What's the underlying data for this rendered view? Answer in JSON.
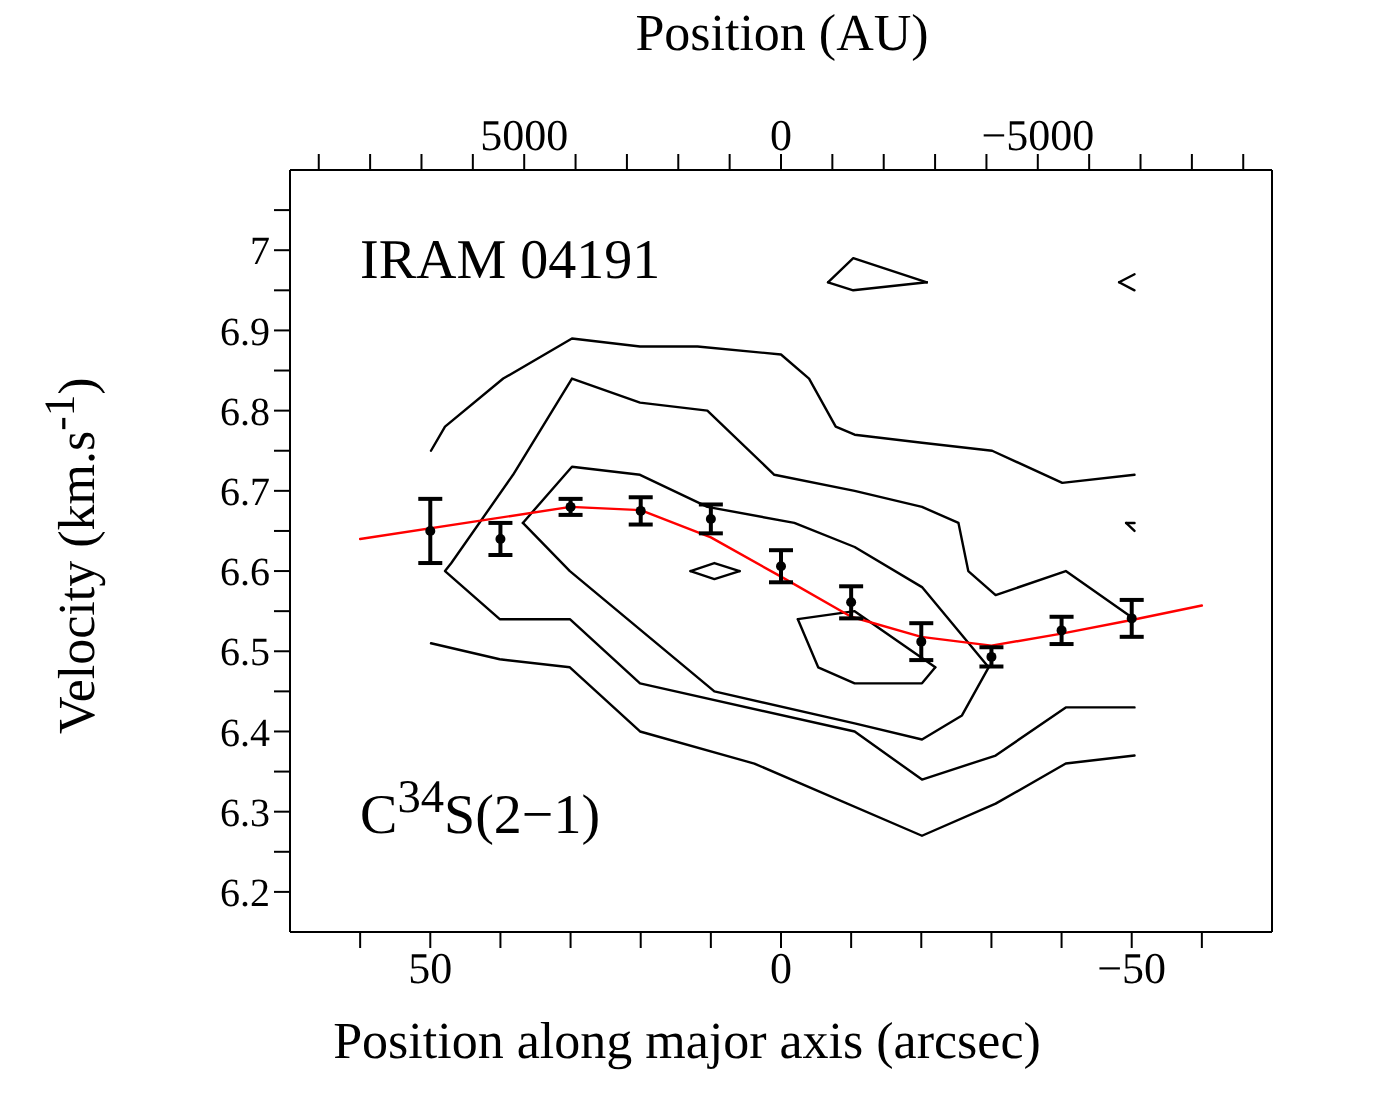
{
  "chart_data": {
    "type": "line",
    "xlabel": "Position along major axis (arcsec)",
    "ylabel": "Velocity (km.s$^{-1}$)",
    "x2label": "Position (AU)",
    "annotations": [
      "IRAM 04191",
      "C$^{34}$S(2−1)"
    ],
    "xlim": [
      70,
      -70
    ],
    "xticks": [
      {
        "value": 60,
        "label": null
      },
      50,
      {
        "value": 40,
        "label": null
      },
      {
        "value": 30,
        "label": null
      },
      {
        "value": 20,
        "label": null
      },
      {
        "value": 10,
        "label": null
      },
      0,
      {
        "value": -10,
        "label": null
      },
      {
        "value": -20,
        "label": null
      },
      {
        "value": -30,
        "label": null
      },
      {
        "value": -40,
        "label": null
      },
      {
        "value": -50,
        "label": "−50"
      },
      {
        "value": -60,
        "label": null
      }
    ],
    "x2lim": [
      9560,
      -9560
    ],
    "x2ticks": [
      {
        "value": 9000,
        "label": null
      },
      {
        "value": 8000,
        "label": null
      },
      {
        "value": 7000,
        "label": null
      },
      {
        "value": 6000,
        "label": null
      },
      5000,
      {
        "value": 4000,
        "label": null
      },
      {
        "value": 3000,
        "label": null
      },
      {
        "value": 2000,
        "label": null
      },
      {
        "value": 1000,
        "label": null
      },
      0,
      {
        "value": -1000,
        "label": null
      },
      {
        "value": -2000,
        "label": null
      },
      {
        "value": -3000,
        "label": null
      },
      {
        "value": -4000,
        "label": null
      },
      {
        "value": -5000,
        "label": "−5000"
      },
      {
        "value": -6000,
        "label": null
      },
      {
        "value": -7000,
        "label": null
      },
      {
        "value": -8000,
        "label": null
      },
      {
        "value": -9000,
        "label": null
      }
    ],
    "ylim": [
      6.15,
      7.1
    ],
    "yticks": [
      6.2,
      {
        "value": 6.25,
        "label": null
      },
      6.3,
      {
        "value": 6.35,
        "label": null
      },
      6.4,
      {
        "value": 6.45,
        "label": null
      },
      6.5,
      {
        "value": 6.55,
        "label": null
      },
      6.6,
      {
        "value": 6.65,
        "label": null
      },
      6.7,
      {
        "value": 6.75,
        "label": null
      },
      6.8,
      {
        "value": 6.85,
        "label": null
      },
      6.9,
      {
        "value": 6.95,
        "label": null
      },
      7,
      {
        "value": 7.05,
        "label": null
      }
    ],
    "series": [
      {
        "type": "line",
        "marker": "none",
        "color": "#000000",
        "x": [
          49.9,
          47.9,
          39.6,
          29.8,
          20.1,
          11.9,
          0,
          -4,
          -7.8,
          -10.5,
          -20.1,
          -30.1,
          -40.1,
          -50.4
        ],
        "values": [
          6.75,
          6.78,
          6.84,
          6.89,
          6.88,
          6.88,
          6.87,
          6.84,
          6.78,
          6.77,
          6.76,
          6.75,
          6.71,
          6.72
        ]
      },
      {
        "type": "line",
        "marker": "none",
        "color": "#000000",
        "x": [
          49.9,
          40.1,
          30.1,
          20.1,
          3.8,
          -20.1,
          -30.6,
          -40.6,
          -50.4
        ],
        "values": [
          6.51,
          6.49,
          6.48,
          6.4,
          6.36,
          6.27,
          6.31,
          6.36,
          6.37
        ]
      },
      {
        "type": "line",
        "marker": "none",
        "color": "#000000",
        "x": [
          -50.4,
          -40.6,
          -30.6,
          -26.7,
          -25.3,
          -20.1,
          -10.5,
          0.95,
          10.5,
          20.1,
          29.8,
          38.2,
          47,
          47.9,
          40.1,
          30.1,
          20.1,
          -10.5,
          -20.1,
          -30.6,
          -40.6,
          -50.4
        ],
        "values": [
          6.54,
          6.6,
          6.57,
          6.6,
          6.66,
          6.68,
          6.7,
          6.72,
          6.8,
          6.81,
          6.84,
          6.72,
          6.61,
          6.6,
          6.54,
          6.54,
          6.46,
          6.4,
          6.34,
          6.37,
          6.43,
          6.43
        ]
      },
      {
        "type": "line",
        "marker": "none",
        "color": "#000000",
        "x": [
          36.8,
          29.8,
          20.1,
          10.5,
          -1.9,
          -10.5,
          -20.1,
          -29.6
        ],
        "values": [
          6.66,
          6.73,
          6.72,
          6.68,
          6.66,
          6.63,
          6.58,
          6.48
        ]
      },
      {
        "type": "line",
        "marker": "none",
        "color": "#000000",
        "x": [
          -29.6,
          -25.8,
          -20.1,
          -10.5,
          9.5,
          30.1,
          36.8
        ],
        "values": [
          6.48,
          6.42,
          6.39,
          6.41,
          6.45,
          6.6,
          6.66
        ]
      },
      {
        "type": "line",
        "marker": "none",
        "color": "#000000",
        "x": [
          -2.4,
          -10.5,
          -22
        ],
        "values": [
          6.54,
          6.55,
          6.48
        ]
      },
      {
        "type": "line",
        "marker": "none",
        "color": "#000000",
        "x": [
          -22,
          -20.1,
          -10.5,
          -5.3,
          -2.4
        ],
        "values": [
          6.48,
          6.46,
          6.46,
          6.48,
          6.54
        ]
      },
      {
        "type": "line",
        "marker": "none",
        "color": "#000000",
        "x": [
          -6.7,
          -10.3,
          -20.8
        ],
        "values": [
          6.96,
          6.99,
          6.96
        ]
      },
      {
        "type": "line",
        "marker": "none",
        "color": "#000000",
        "x": [
          -20.8,
          -10.3,
          -6.7
        ],
        "values": [
          6.96,
          6.95,
          6.96
        ]
      },
      {
        "type": "line",
        "marker": "none",
        "color": "#000000",
        "x": [
          12.9,
          9.5,
          5.9
        ],
        "values": [
          6.6,
          6.61,
          6.6
        ]
      },
      {
        "type": "line",
        "marker": "none",
        "color": "#000000",
        "x": [
          5.9,
          9.5,
          12.9
        ],
        "values": [
          6.6,
          6.59,
          6.6
        ]
      },
      {
        "type": "line",
        "marker": "none",
        "color": "#000000",
        "x": [
          -50.4,
          -48.2
        ],
        "values": [
          6.97,
          6.96
        ]
      },
      {
        "type": "line",
        "marker": "none",
        "color": "#000000",
        "x": [
          -48.2,
          -50.4
        ],
        "values": [
          6.96,
          6.95
        ]
      },
      {
        "type": "line",
        "marker": "none",
        "color": "#000000",
        "x": [
          -50.4,
          -49.2
        ],
        "values": [
          6.66,
          6.66
        ]
      },
      {
        "type": "line",
        "marker": "none",
        "color": "#000000",
        "x": [
          -49.2,
          -50.4
        ],
        "values": [
          6.66,
          6.65
        ]
      },
      {
        "type": "line",
        "marker": "none",
        "color": "#ff0000",
        "x": [
          60,
          30,
          20,
          10,
          0,
          -10,
          -20,
          -30,
          -40,
          -50,
          -60
        ],
        "values": [
          6.64,
          6.68,
          6.676,
          6.642,
          6.593,
          6.543,
          6.518,
          6.507,
          6.522,
          6.539,
          6.557
        ]
      },
      {
        "type": "scatter",
        "marker": "circle",
        "color": "#000000",
        "x": [
          50,
          40,
          30,
          20,
          10,
          0,
          -10,
          -20,
          -30,
          -40,
          -50
        ],
        "values": [
          6.65,
          6.64,
          6.68,
          6.675,
          6.665,
          6.606,
          6.561,
          6.512,
          6.493,
          6.526,
          6.541
        ],
        "errors": [
          0.04,
          0.02,
          0.01,
          0.017,
          0.018,
          0.02,
          0.02,
          0.023,
          0.012,
          0.017,
          0.023
        ]
      }
    ]
  }
}
